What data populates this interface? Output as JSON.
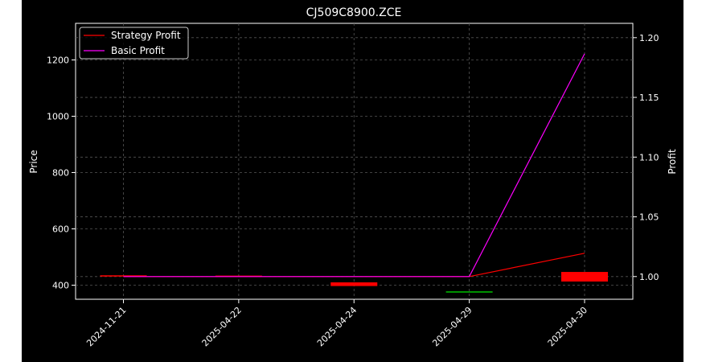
{
  "chart_data": {
    "type": "line",
    "title": "CJ509C8900.ZCE",
    "ylabel_left": "Price",
    "ylabel_right": "Profit",
    "x_categories": [
      "2024-11-21",
      "2025-04-22",
      "2025-04-24",
      "2025-04-29",
      "2025-04-30"
    ],
    "left_axis": {
      "ticks": [
        400,
        600,
        800,
        1000,
        1200
      ],
      "tick_labels": [
        "400",
        "600",
        "800",
        "1000",
        "1200"
      ],
      "range": [
        350,
        1330
      ]
    },
    "right_axis": {
      "ticks": [
        1.0,
        1.05,
        1.1,
        1.15,
        1.2
      ],
      "tick_labels": [
        "1.00",
        "1.05",
        "1.10",
        "1.15",
        "1.20"
      ],
      "range": [
        0.981,
        1.212
      ]
    },
    "grid": true,
    "legend": {
      "placement": "top-left"
    },
    "series": [
      {
        "name": "Strategy Profit",
        "axis": "right",
        "color": "#ff0000",
        "values": [
          1.0,
          1.0,
          1.0,
          1.0,
          1.0195
        ]
      },
      {
        "name": "Basic Profit",
        "axis": "right",
        "color": "#ff00ff",
        "values": [
          1.0,
          1.0,
          1.0,
          1.0,
          1.1865
        ]
      }
    ],
    "candles": [
      {
        "x": "2024-11-21",
        "open": 435,
        "close": 435,
        "color": "#ff0000"
      },
      {
        "x": "2025-04-22",
        "open": 434,
        "close": 434,
        "color": "#ff0000"
      },
      {
        "x": "2025-04-24",
        "open": 410,
        "close": 397,
        "color": "#ff0000"
      },
      {
        "x": "2025-04-29",
        "open": 378,
        "close": 378,
        "color": "#00c000"
      },
      {
        "x": "2025-04-30",
        "open": 447,
        "close": 413,
        "color": "#ff0000"
      }
    ]
  }
}
